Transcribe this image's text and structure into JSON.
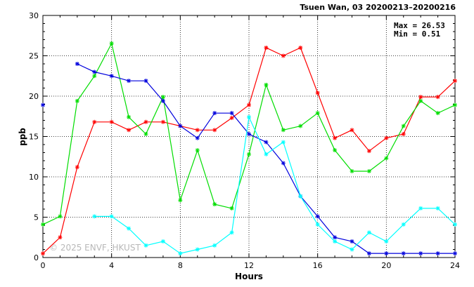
{
  "chart_data": {
    "type": "line",
    "title": "Tsuen Wan, 03 20200213–20200216",
    "xlabel": "Hours",
    "ylabel": "ppb",
    "xlim": [
      0,
      24
    ],
    "ylim": [
      0,
      30
    ],
    "xticks": [
      0,
      4,
      8,
      12,
      16,
      20,
      24
    ],
    "yticks": [
      0,
      5,
      10,
      15,
      20,
      25,
      30
    ],
    "grid": true,
    "stats": {
      "max": "Max = 26.53",
      "min": "Min =  0.51"
    },
    "watermark": "© 2025 ENVF, HKUST",
    "x": [
      0,
      1,
      2,
      3,
      4,
      5,
      6,
      7,
      8,
      9,
      10,
      11,
      12,
      13,
      14,
      15,
      16,
      17,
      18,
      19,
      20,
      21,
      22,
      23,
      24
    ],
    "series": [
      {
        "color": "#ff0000",
        "values": [
          0.5,
          2.5,
          11.2,
          16.8,
          16.8,
          15.8,
          16.8,
          16.8,
          16.3,
          15.8,
          15.8,
          17.3,
          18.9,
          26.0,
          25.0,
          26.0,
          20.4,
          14.8,
          15.8,
          13.2,
          14.8,
          15.3,
          19.9,
          19.9,
          21.9
        ]
      },
      {
        "color": "#00dd00",
        "values": [
          4.1,
          5.1,
          19.4,
          22.5,
          26.53,
          17.4,
          15.3,
          19.9,
          7.1,
          13.3,
          6.6,
          6.1,
          12.8,
          21.4,
          15.8,
          16.3,
          17.9,
          13.3,
          10.7,
          10.7,
          12.3,
          16.3,
          19.4,
          17.9,
          18.9
        ]
      },
      {
        "color": "#0000dd",
        "values": [
          18.9,
          null,
          24.0,
          23.0,
          22.5,
          21.9,
          21.9,
          19.4,
          16.3,
          14.8,
          17.9,
          17.9,
          15.3,
          14.3,
          11.7,
          7.6,
          5.1,
          2.5,
          2.0,
          0.51,
          0.51,
          0.51,
          0.51,
          0.51,
          0.51
        ]
      },
      {
        "color": "#00ffff",
        "values": [
          null,
          null,
          null,
          5.1,
          5.1,
          3.6,
          1.5,
          2.0,
          0.51,
          1.0,
          1.5,
          3.1,
          17.4,
          12.8,
          14.3,
          7.6,
          4.1,
          2.0,
          1.0,
          3.1,
          2.0,
          4.1,
          6.1,
          6.1,
          4.1
        ]
      }
    ]
  }
}
